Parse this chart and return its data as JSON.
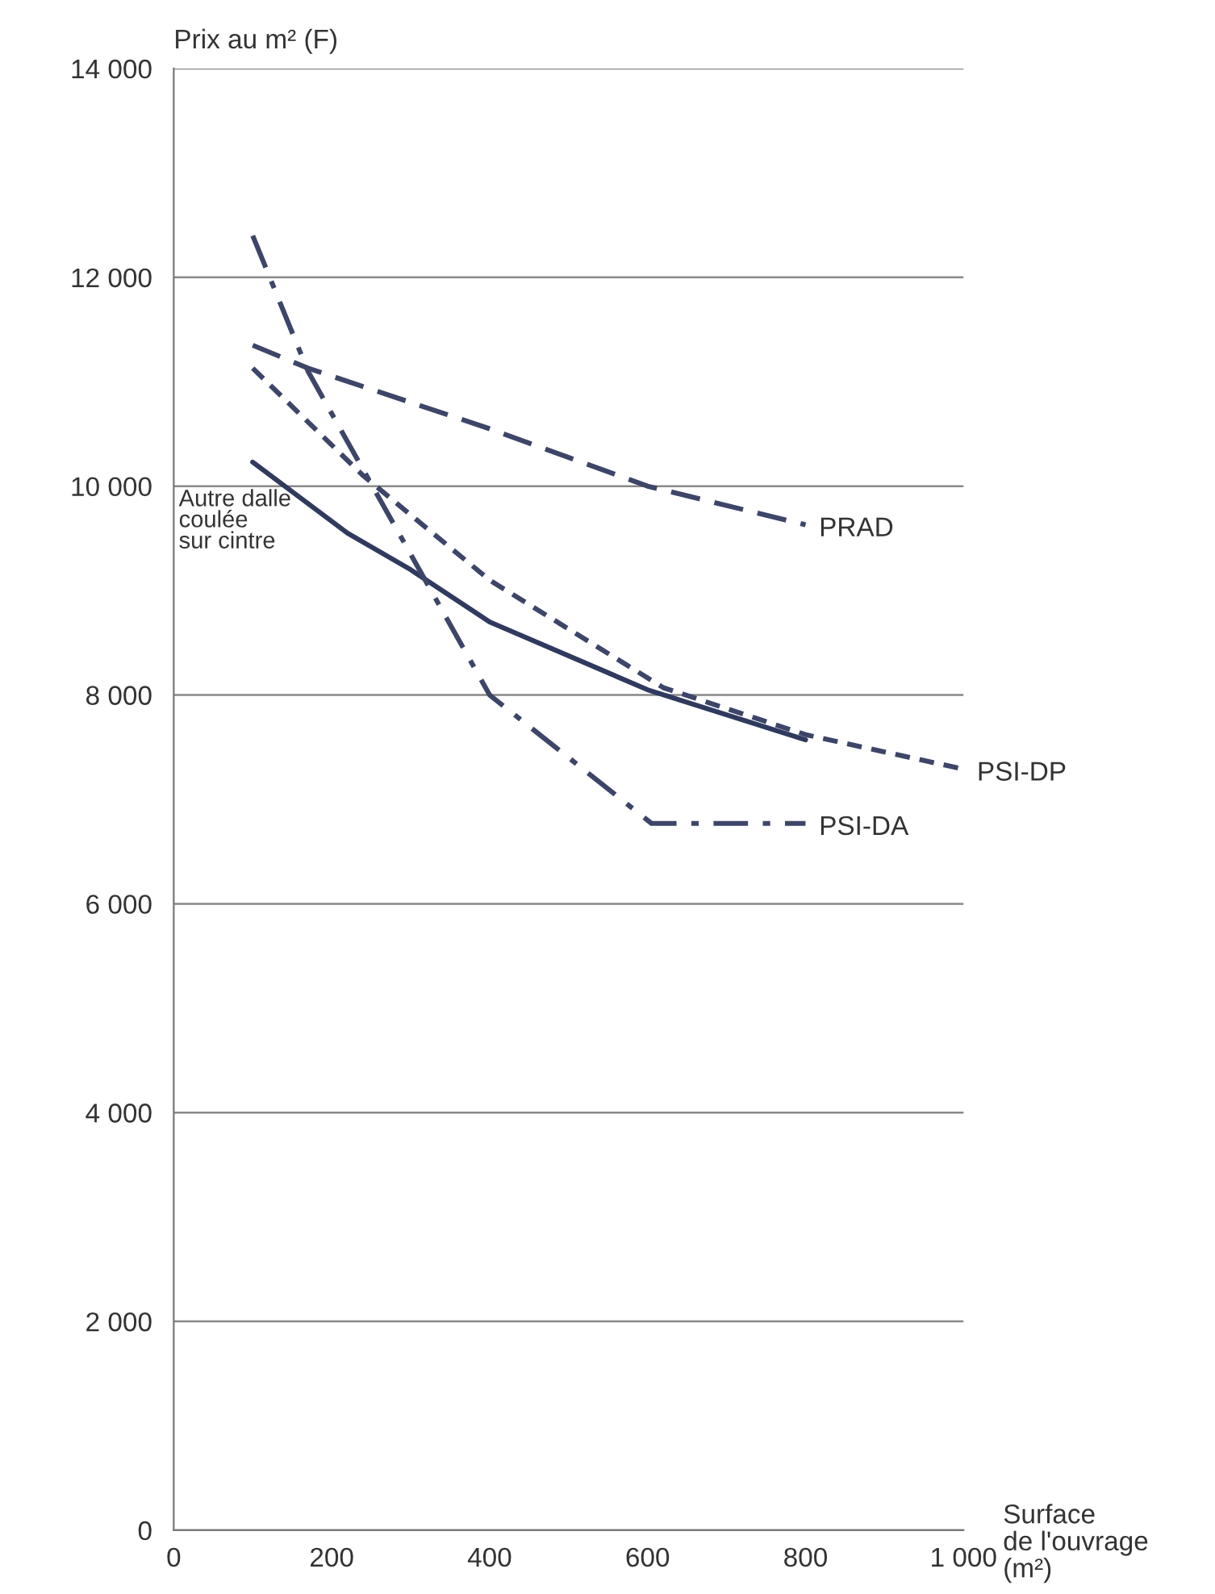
{
  "chart_data": {
    "type": "line",
    "ylabel": "Prix au m² (F)",
    "xlabel": "Surface\nde l'ouvrage\n(m²)",
    "xlim": [
      0,
      1000
    ],
    "xticks": [
      0,
      200,
      400,
      600,
      800,
      {
        "value": 1000,
        "label": "1 000"
      }
    ],
    "ylim": [
      0,
      14000
    ],
    "yticks": [
      0,
      {
        "value": 2000,
        "label": "2 000"
      },
      {
        "value": 4000,
        "label": "4 000"
      },
      {
        "value": 6000,
        "label": "6 000"
      },
      {
        "value": 8000,
        "label": "8 000"
      },
      {
        "value": 10000,
        "label": "10 000"
      },
      {
        "value": 12000,
        "label": "12 000"
      },
      {
        "value": 14000,
        "label": "14 000"
      }
    ],
    "grid": "y",
    "legend": false,
    "marker": "none",
    "series": [
      {
        "color": "#2f3a5e",
        "line_style": "solid",
        "x": [
          100,
          220,
          300,
          400,
          600,
          800
        ],
        "values": [
          10230,
          9550,
          9200,
          8700,
          8050,
          7570
        ]
      },
      {
        "name": "PRAD",
        "color": "#3d4668",
        "line_style": "dashed",
        "x": [
          100,
          170,
          400,
          600,
          800
        ],
        "values": [
          11350,
          11130,
          10550,
          10000,
          9630
        ]
      },
      {
        "name": "PSI-DP",
        "color": "#3d4668",
        "line_style": "dotted",
        "x": [
          100,
          240,
          400,
          620,
          800,
          1000
        ],
        "values": [
          11130,
          10100,
          9100,
          8070,
          7620,
          7290
        ]
      },
      {
        "name": "PSI-DA",
        "color": "#3d4668",
        "line_style": "dashdot",
        "x": [
          100,
          170,
          400,
          605,
          800
        ],
        "values": [
          12400,
          11100,
          8000,
          6770,
          6770
        ]
      }
    ],
    "annotations": [
      {
        "text": "Autre dalle\ncoulée\nsur cintre",
        "x": 100,
        "y": 10230
      }
    ]
  }
}
